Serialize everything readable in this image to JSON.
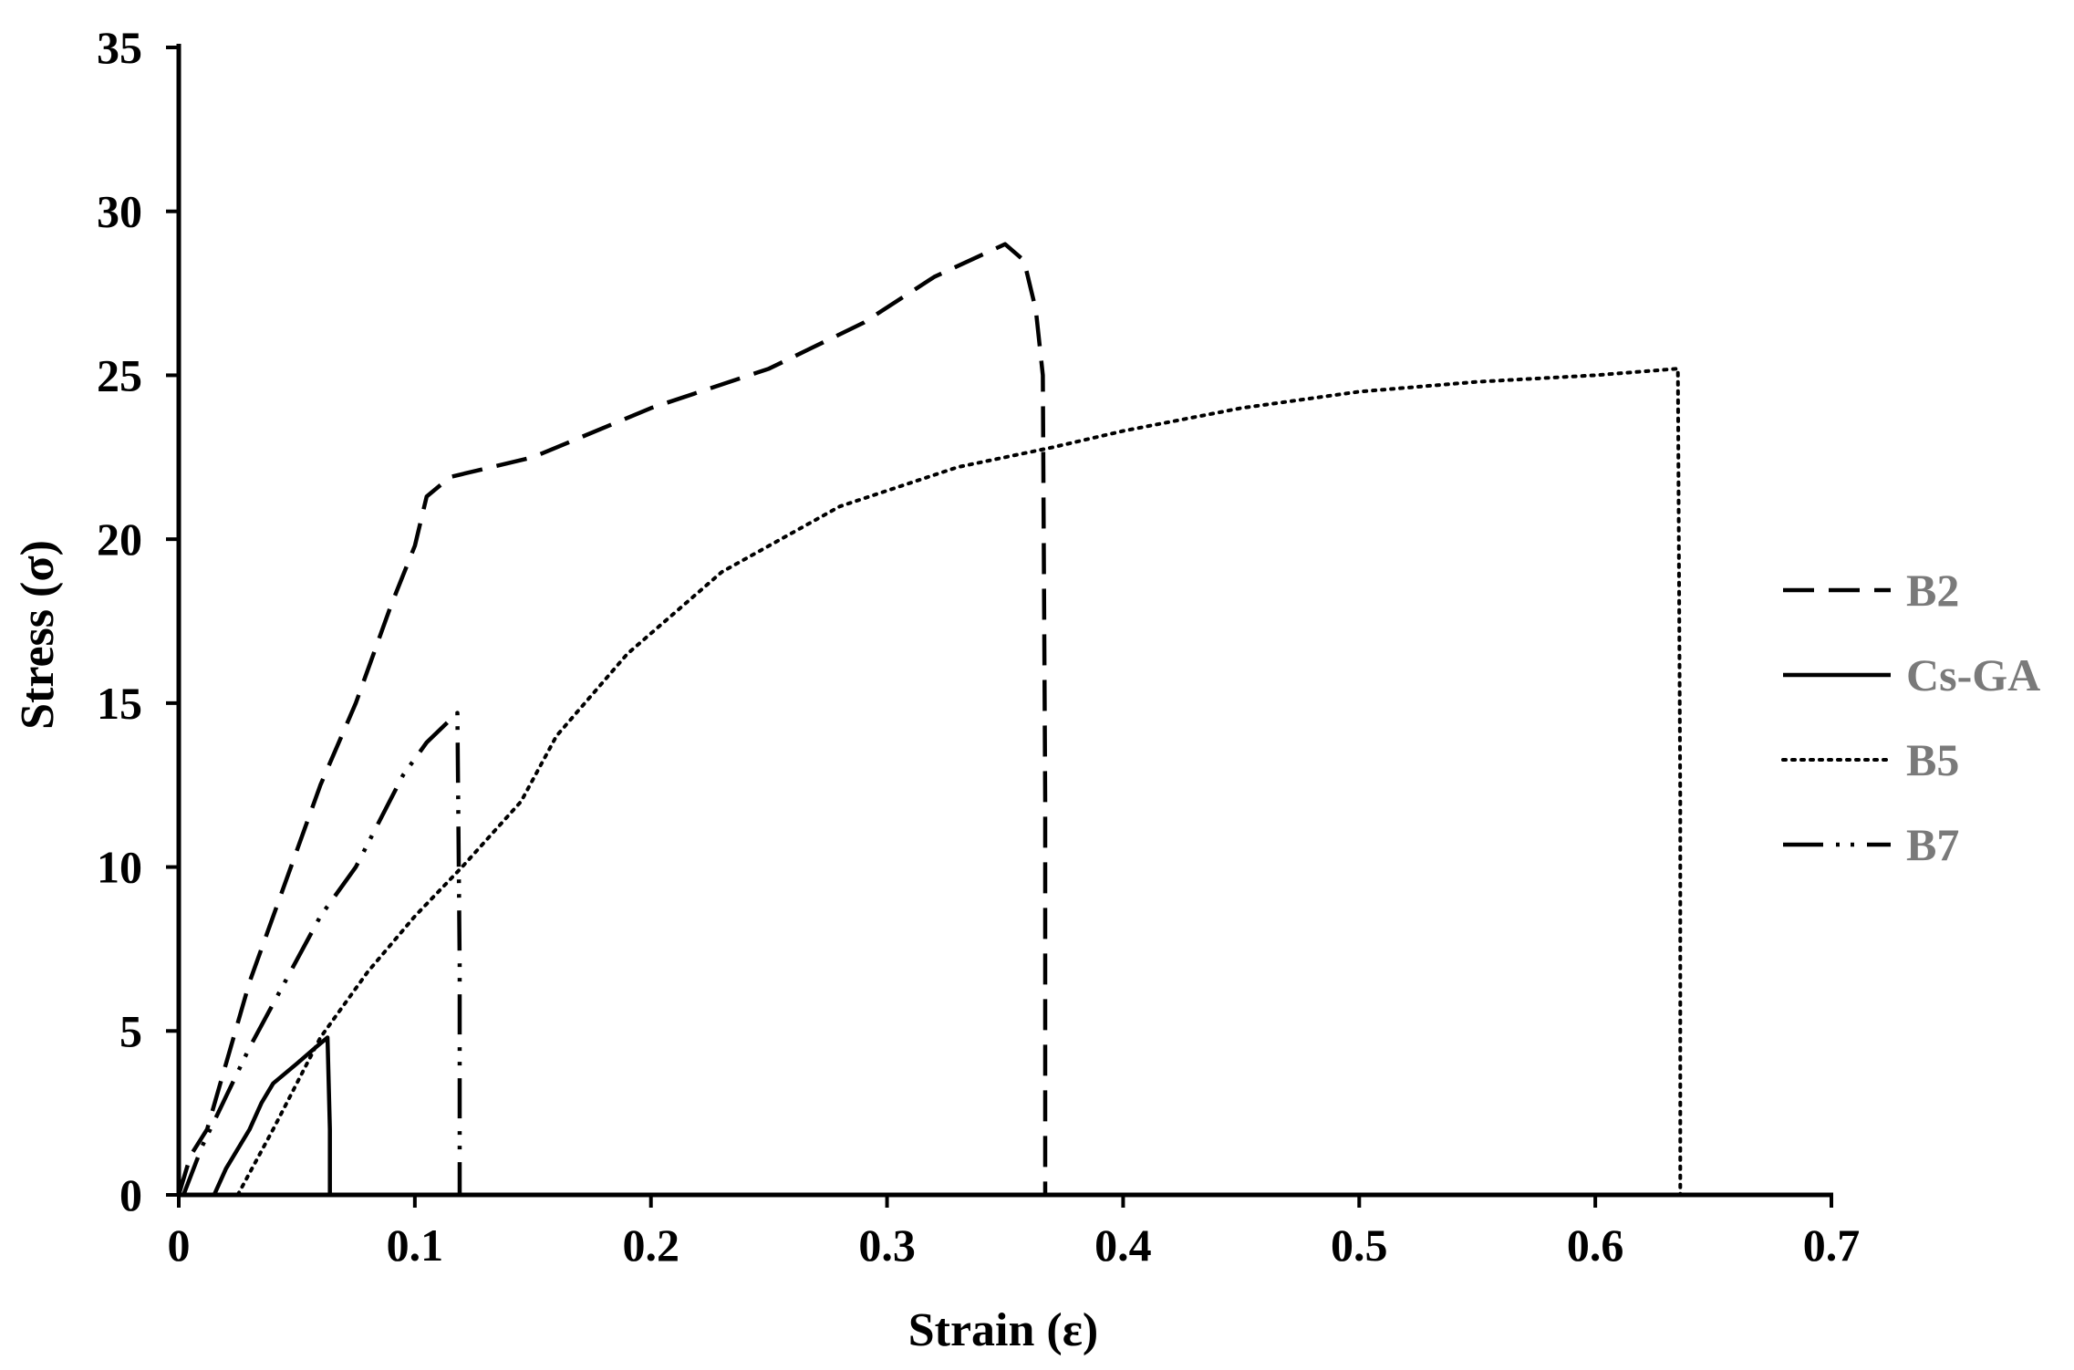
{
  "chart_data": {
    "type": "line",
    "title": "",
    "xlabel": "Strain (ε)",
    "ylabel": "Stress (σ)",
    "xlim": [
      0,
      0.7
    ],
    "ylim": [
      0,
      35
    ],
    "x_ticks": [
      "0",
      "0.1",
      "0.2",
      "0.3",
      "0.4",
      "0.5",
      "0.6",
      "0.7"
    ],
    "y_ticks": [
      "0",
      "5",
      "10",
      "15",
      "20",
      "25",
      "30",
      "35"
    ],
    "grid": false,
    "legend_position": "right",
    "series": [
      {
        "name": "B2",
        "line_style": "dashed",
        "color": "#000000",
        "points": [
          [
            0,
            0
          ],
          [
            0.005,
            1.2
          ],
          [
            0.012,
            2.0
          ],
          [
            0.02,
            4.0
          ],
          [
            0.03,
            6.5
          ],
          [
            0.045,
            9.5
          ],
          [
            0.06,
            12.5
          ],
          [
            0.075,
            15.0
          ],
          [
            0.09,
            18.0
          ],
          [
            0.1,
            19.8
          ],
          [
            0.105,
            21.3
          ],
          [
            0.115,
            21.9
          ],
          [
            0.15,
            22.5
          ],
          [
            0.2,
            24.0
          ],
          [
            0.25,
            25.2
          ],
          [
            0.29,
            26.6
          ],
          [
            0.32,
            28.0
          ],
          [
            0.35,
            29.0
          ],
          [
            0.358,
            28.5
          ],
          [
            0.363,
            27.0
          ],
          [
            0.366,
            25.0
          ],
          [
            0.367,
            12.0
          ],
          [
            0.367,
            0
          ]
        ]
      },
      {
        "name": "Cs-GA",
        "line_style": "solid",
        "color": "#000000",
        "points": [
          [
            0.015,
            0
          ],
          [
            0.02,
            0.8
          ],
          [
            0.03,
            2.0
          ],
          [
            0.035,
            2.8
          ],
          [
            0.04,
            3.4
          ],
          [
            0.05,
            4.0
          ],
          [
            0.058,
            4.5
          ],
          [
            0.063,
            4.8
          ],
          [
            0.064,
            2.0
          ],
          [
            0.064,
            0
          ]
        ]
      },
      {
        "name": "B5",
        "line_style": "dotted",
        "color": "#000000",
        "points": [
          [
            0.025,
            0
          ],
          [
            0.04,
            2.0
          ],
          [
            0.06,
            4.8
          ],
          [
            0.08,
            6.8
          ],
          [
            0.1,
            8.5
          ],
          [
            0.12,
            10.0
          ],
          [
            0.145,
            12.0
          ],
          [
            0.16,
            14.0
          ],
          [
            0.19,
            16.5
          ],
          [
            0.23,
            19.0
          ],
          [
            0.28,
            21.0
          ],
          [
            0.33,
            22.2
          ],
          [
            0.37,
            22.8
          ],
          [
            0.4,
            23.3
          ],
          [
            0.45,
            24.0
          ],
          [
            0.5,
            24.5
          ],
          [
            0.55,
            24.8
          ],
          [
            0.6,
            25.0
          ],
          [
            0.635,
            25.2
          ],
          [
            0.636,
            12.0
          ],
          [
            0.636,
            0
          ]
        ]
      },
      {
        "name": "B7",
        "line_style": "dash-dot-dot",
        "color": "#000000",
        "points": [
          [
            0.002,
            0
          ],
          [
            0.01,
            1.5
          ],
          [
            0.02,
            3.0
          ],
          [
            0.03,
            4.5
          ],
          [
            0.045,
            6.5
          ],
          [
            0.06,
            8.5
          ],
          [
            0.075,
            10.0
          ],
          [
            0.095,
            12.8
          ],
          [
            0.105,
            13.8
          ],
          [
            0.118,
            14.7
          ],
          [
            0.119,
            7.0
          ],
          [
            0.119,
            0
          ]
        ]
      }
    ]
  }
}
